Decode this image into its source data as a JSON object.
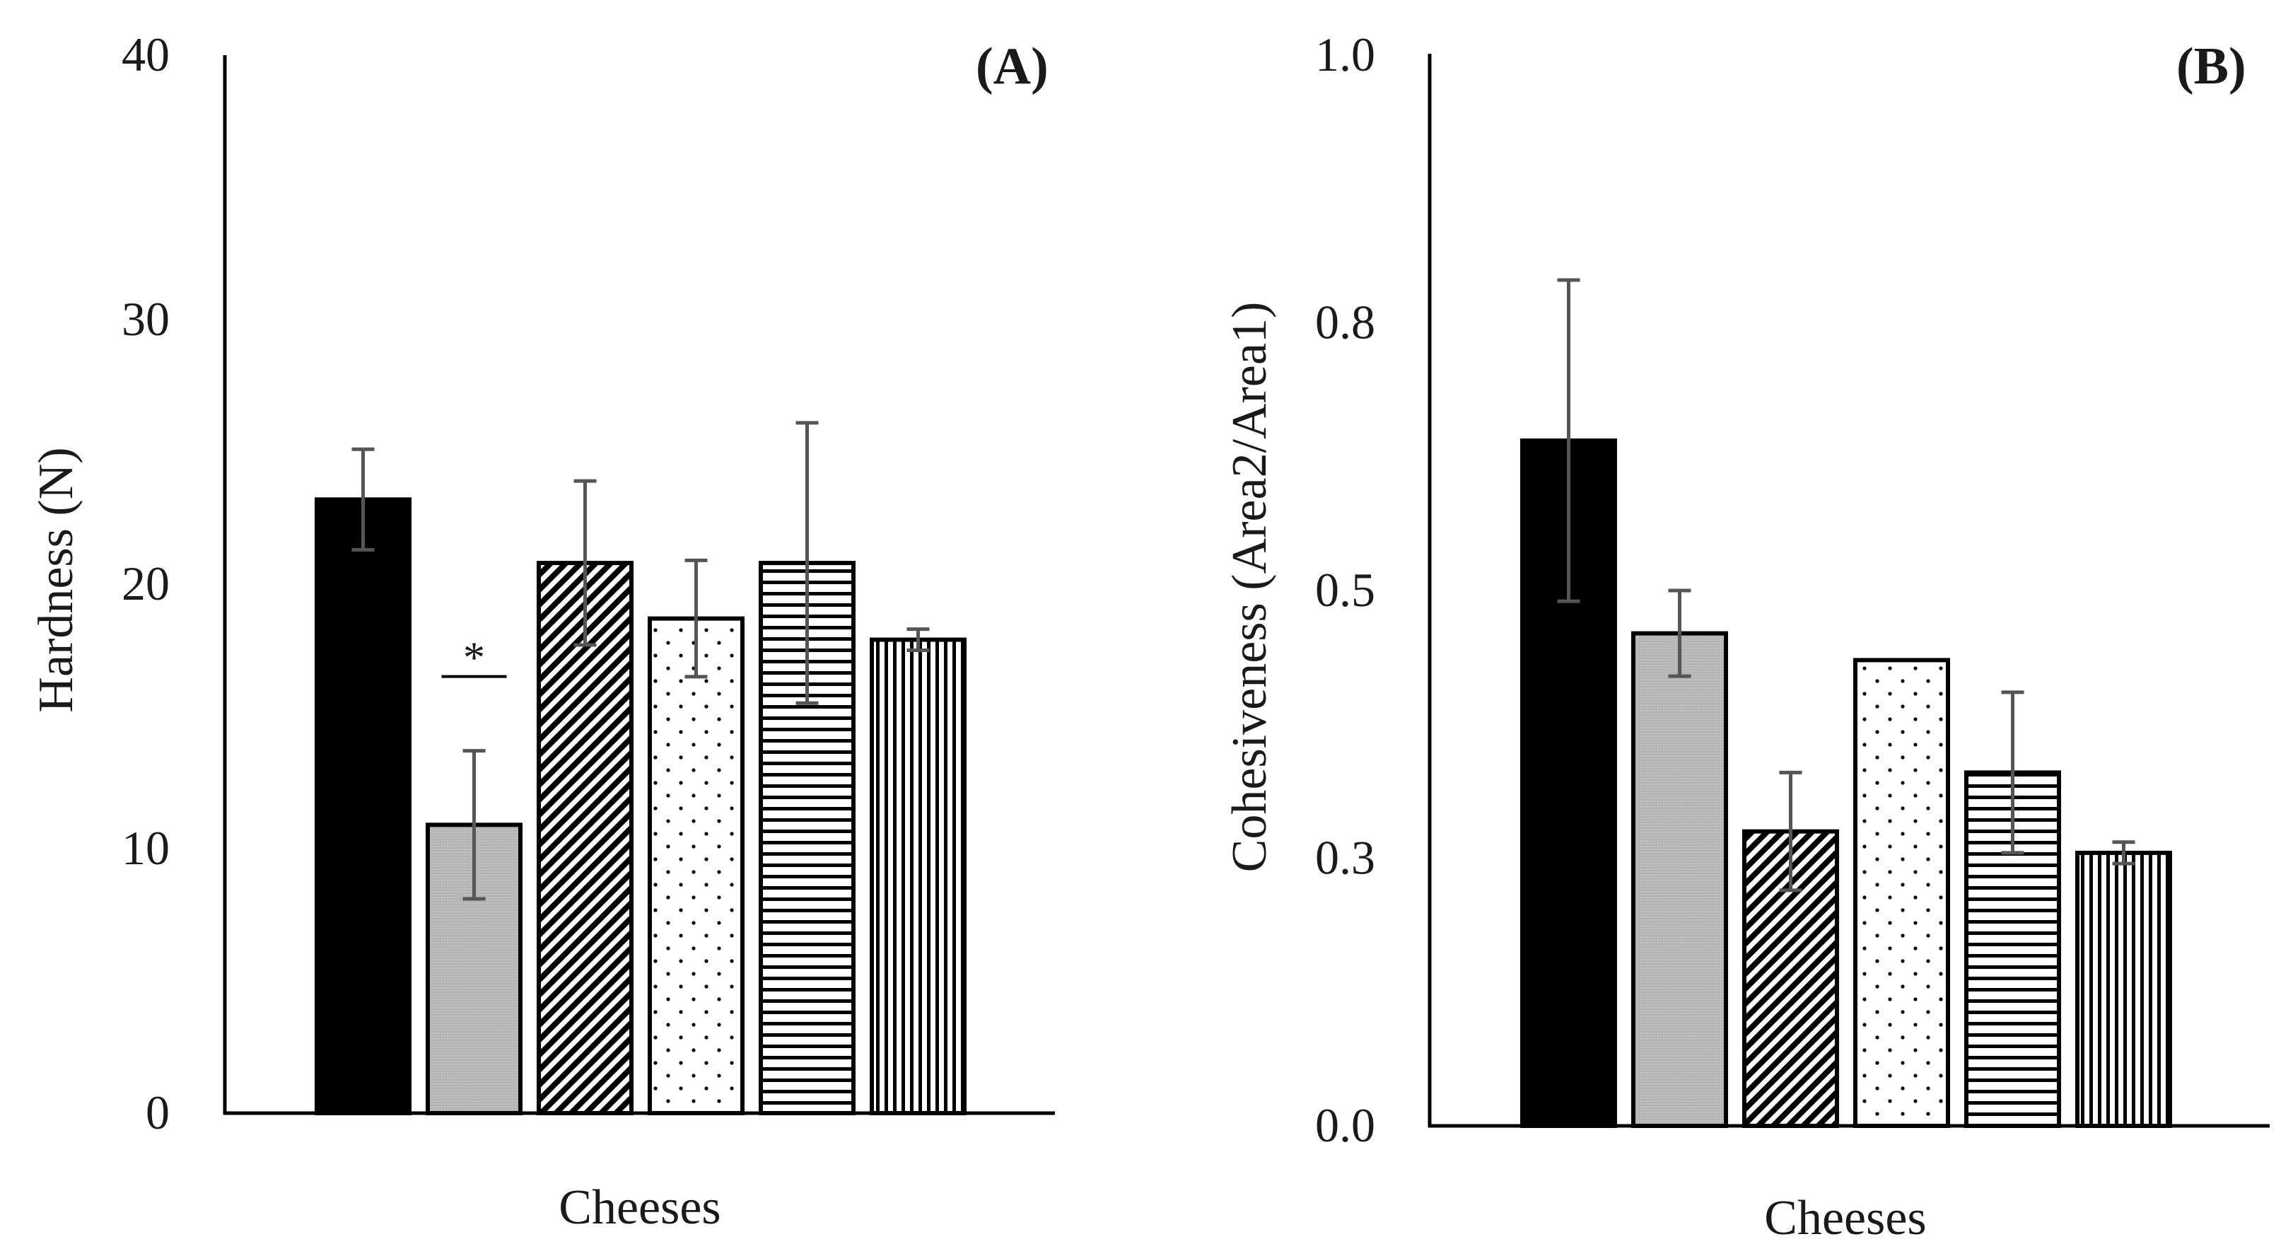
{
  "chart_data": [
    {
      "type": "bar",
      "panel_label": "(A)",
      "xlabel": "Cheeses",
      "ylabel": "Hardness (N)",
      "ylim": [
        0,
        40
      ],
      "yticks": [
        0,
        10,
        20,
        30,
        40
      ],
      "ytick_labels": [
        "0",
        "10",
        "20",
        "30",
        "40"
      ],
      "categories": [
        "",
        "",
        "",
        "",
        "",
        ""
      ],
      "values": [
        23.2,
        10.9,
        20.8,
        18.7,
        20.8,
        17.9
      ],
      "error": [
        1.9,
        2.8,
        3.1,
        2.2,
        5.3,
        0.4
      ],
      "patterns": [
        "solid-black",
        "gray-fill",
        "diagonal-stripes",
        "dots",
        "horizontal-stripes",
        "vertical-stripes"
      ],
      "annotations": [
        {
          "bar_index": 1,
          "text": "*"
        }
      ]
    },
    {
      "type": "bar",
      "panel_label": "(B)",
      "xlabel": "Cheeses",
      "ylabel": "Cohesiveness (Area2/Area1)",
      "ylim": [
        0,
        1.0
      ],
      "yticks": [
        0,
        0.25,
        0.5,
        0.75,
        1.0
      ],
      "ytick_labels": [
        "0.0",
        "0.3",
        "0.5",
        "0.8",
        "1.0"
      ],
      "categories": [
        "",
        "",
        "",
        "",
        "",
        ""
      ],
      "values": [
        0.64,
        0.46,
        0.275,
        0.435,
        0.33,
        0.255
      ],
      "error": [
        0.15,
        0.04,
        0.055,
        0.0,
        0.075,
        0.01
      ],
      "patterns": [
        "solid-black",
        "gray-fill",
        "diagonal-stripes",
        "dots",
        "horizontal-stripes",
        "vertical-stripes"
      ],
      "annotations": []
    }
  ]
}
